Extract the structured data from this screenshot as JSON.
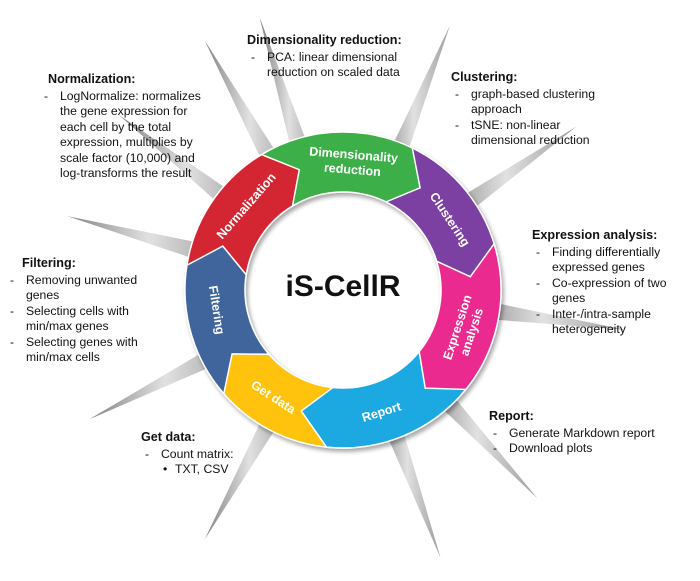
{
  "center_title": "iS-CellR",
  "segments": [
    {
      "id": "get-data",
      "label": "Get data",
      "color": "#FFC20E"
    },
    {
      "id": "filtering",
      "label": "Filtering",
      "color": "#41659C"
    },
    {
      "id": "normalization",
      "label": "Normalization",
      "color": "#D32631"
    },
    {
      "id": "dimensionality-reduction",
      "label_lines": [
        "Dimensionality",
        "reduction"
      ],
      "color": "#3DAF49"
    },
    {
      "id": "clustering",
      "label": "Clustering",
      "color": "#7B41A3"
    },
    {
      "id": "expression-analysis",
      "label_lines": [
        "Expression",
        "analysis"
      ],
      "color": "#EB2C8F"
    },
    {
      "id": "report",
      "label": "Report",
      "color": "#1BA9E1"
    }
  ],
  "panels": {
    "dimensionality_reduction": {
      "title": "Dimensionality reduction:",
      "items": [
        {
          "lines": [
            "PCA: linear dimensional",
            "reduction on scaled data"
          ]
        }
      ]
    },
    "normalization": {
      "title": "Normalization:",
      "items": [
        {
          "lines": [
            "LogNormalize: normalizes",
            "the gene expression for",
            "each cell by the total",
            "expression, multiplies by",
            "scale factor (10,000) and",
            "log-transforms the result"
          ]
        }
      ]
    },
    "clustering": {
      "title": "Clustering:",
      "items": [
        {
          "lines": [
            "graph-based clustering",
            "approach"
          ]
        },
        {
          "lines": [
            "tSNE: non-linear",
            "dimensional reduction"
          ]
        }
      ]
    },
    "expression_analysis": {
      "title": "Expression analysis:",
      "items": [
        {
          "lines": [
            "Finding differentially",
            "expressed genes"
          ]
        },
        {
          "lines": [
            "Co-expression of two",
            "genes"
          ]
        },
        {
          "lines": [
            "Inter-/intra-sample",
            "heterogeneity"
          ]
        }
      ]
    },
    "filtering": {
      "title": "Filtering:",
      "items": [
        {
          "lines": [
            "Removing unwanted",
            "genes"
          ]
        },
        {
          "lines": [
            "Selecting cells with",
            "min/max genes"
          ]
        },
        {
          "lines": [
            "Selecting genes with",
            "min/max cells"
          ]
        }
      ]
    },
    "report": {
      "title": "Report:",
      "items": [
        {
          "lines": [
            "Generate Markdown report"
          ]
        },
        {
          "lines": [
            "Download plots"
          ]
        }
      ]
    },
    "get_data": {
      "title": "Get data:",
      "items": [
        {
          "lines": [
            "Count matrix:"
          ]
        },
        {
          "lines": [
            "TXT, CSV"
          ],
          "sub": true
        }
      ]
    }
  }
}
